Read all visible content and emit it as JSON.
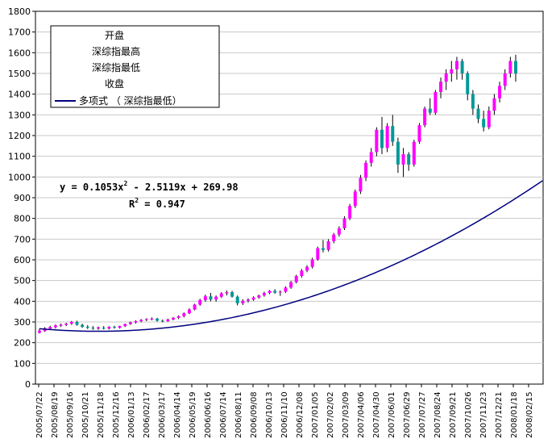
{
  "chart_data": {
    "type": "candlestick",
    "ylim": [
      0,
      1800
    ],
    "ytick_step": 100,
    "yticks": [
      "0",
      "100",
      "200",
      "300",
      "400",
      "500",
      "600",
      "700",
      "800",
      "900",
      "1000",
      "1100",
      "1200",
      "1300",
      "1400",
      "1500",
      "1600",
      "1700",
      "1800"
    ],
    "xticks": [
      "2005/07/22",
      "2005/08/19",
      "2005/09/16",
      "2005/10/21",
      "2005/11/18",
      "2005/12/16",
      "2006/01/13",
      "2006/02/17",
      "2006/03/17",
      "2006/04/14",
      "2006/05/19",
      "2006/06/16",
      "2006/07/14",
      "2006/08/11",
      "2006/09/08",
      "2006/10/13",
      "2006/11/10",
      "2006/12/08",
      "2007/01/05",
      "2007/02/02",
      "2007/03/09",
      "2007/04/06",
      "2007/04/30",
      "2007/06/01",
      "2007/06/29",
      "2007/07/27",
      "2007/08/24",
      "2007/09/21",
      "2007/10/26",
      "2007/11/23",
      "2007/12/21",
      "2008/01/18",
      "2008/02/15"
    ],
    "grid": true,
    "legend_position": "top-left",
    "legend": {
      "entries": [
        "开盘",
        "深综指最高",
        "深综指最低",
        "收盘"
      ],
      "trend_label": "多项式 （   深综指最低）"
    },
    "trendline": {
      "type": "polynomial",
      "coefficients": [
        0.1053,
        -2.5119,
        269.98
      ],
      "equation_prefix": "y = 0.1053x",
      "equation_mid": " - 2.5119x + 269.98",
      "r2_prefix": "R",
      "r2_suffix": " = 0.947",
      "sup": "2"
    },
    "colors": {
      "up": "#ff00ff",
      "down": "#009999",
      "wick": "#000000",
      "trend": "#000080",
      "grid": "#c8c8c8"
    },
    "series": [
      {
        "o": 248,
        "h": 268,
        "l": 244,
        "c": 258
      },
      {
        "o": 256,
        "h": 275,
        "l": 252,
        "c": 270
      },
      {
        "o": 268,
        "h": 282,
        "l": 262,
        "c": 276
      },
      {
        "o": 275,
        "h": 288,
        "l": 268,
        "c": 283
      },
      {
        "o": 282,
        "h": 292,
        "l": 276,
        "c": 287
      },
      {
        "o": 286,
        "h": 296,
        "l": 280,
        "c": 292
      },
      {
        "o": 292,
        "h": 305,
        "l": 286,
        "c": 300
      },
      {
        "o": 300,
        "h": 306,
        "l": 282,
        "c": 286
      },
      {
        "o": 286,
        "h": 292,
        "l": 272,
        "c": 276
      },
      {
        "o": 277,
        "h": 285,
        "l": 266,
        "c": 272
      },
      {
        "o": 272,
        "h": 280,
        "l": 262,
        "c": 268
      },
      {
        "o": 268,
        "h": 278,
        "l": 262,
        "c": 274
      },
      {
        "o": 272,
        "h": 280,
        "l": 264,
        "c": 268
      },
      {
        "o": 268,
        "h": 280,
        "l": 264,
        "c": 276
      },
      {
        "o": 276,
        "h": 282,
        "l": 268,
        "c": 272
      },
      {
        "o": 272,
        "h": 282,
        "l": 268,
        "c": 280
      },
      {
        "o": 280,
        "h": 292,
        "l": 276,
        "c": 290
      },
      {
        "o": 290,
        "h": 302,
        "l": 286,
        "c": 298
      },
      {
        "o": 298,
        "h": 308,
        "l": 292,
        "c": 304
      },
      {
        "o": 304,
        "h": 314,
        "l": 298,
        "c": 310
      },
      {
        "o": 310,
        "h": 318,
        "l": 304,
        "c": 314
      },
      {
        "o": 314,
        "h": 322,
        "l": 308,
        "c": 316
      },
      {
        "o": 316,
        "h": 320,
        "l": 302,
        "c": 306
      },
      {
        "o": 306,
        "h": 312,
        "l": 298,
        "c": 304
      },
      {
        "o": 304,
        "h": 316,
        "l": 300,
        "c": 312
      },
      {
        "o": 312,
        "h": 324,
        "l": 308,
        "c": 320
      },
      {
        "o": 320,
        "h": 332,
        "l": 314,
        "c": 328
      },
      {
        "o": 328,
        "h": 346,
        "l": 322,
        "c": 342
      },
      {
        "o": 342,
        "h": 366,
        "l": 338,
        "c": 360
      },
      {
        "o": 360,
        "h": 388,
        "l": 356,
        "c": 384
      },
      {
        "o": 384,
        "h": 412,
        "l": 378,
        "c": 406
      },
      {
        "o": 406,
        "h": 432,
        "l": 398,
        "c": 424
      },
      {
        "o": 424,
        "h": 440,
        "l": 400,
        "c": 408
      },
      {
        "o": 408,
        "h": 428,
        "l": 398,
        "c": 422
      },
      {
        "o": 422,
        "h": 444,
        "l": 416,
        "c": 438
      },
      {
        "o": 438,
        "h": 452,
        "l": 428,
        "c": 444
      },
      {
        "o": 444,
        "h": 450,
        "l": 418,
        "c": 422
      },
      {
        "o": 422,
        "h": 428,
        "l": 380,
        "c": 390
      },
      {
        "o": 390,
        "h": 410,
        "l": 382,
        "c": 402
      },
      {
        "o": 402,
        "h": 414,
        "l": 394,
        "c": 408
      },
      {
        "o": 408,
        "h": 424,
        "l": 402,
        "c": 418
      },
      {
        "o": 418,
        "h": 432,
        "l": 412,
        "c": 428
      },
      {
        "o": 428,
        "h": 446,
        "l": 422,
        "c": 440
      },
      {
        "o": 440,
        "h": 454,
        "l": 434,
        "c": 450
      },
      {
        "o": 450,
        "h": 458,
        "l": 436,
        "c": 442
      },
      {
        "o": 442,
        "h": 452,
        "l": 426,
        "c": 446
      },
      {
        "o": 446,
        "h": 472,
        "l": 440,
        "c": 466
      },
      {
        "o": 466,
        "h": 498,
        "l": 460,
        "c": 492
      },
      {
        "o": 492,
        "h": 528,
        "l": 486,
        "c": 522
      },
      {
        "o": 522,
        "h": 556,
        "l": 514,
        "c": 548
      },
      {
        "o": 548,
        "h": 574,
        "l": 540,
        "c": 566
      },
      {
        "o": 566,
        "h": 610,
        "l": 558,
        "c": 602
      },
      {
        "o": 602,
        "h": 664,
        "l": 596,
        "c": 656
      },
      {
        "o": 656,
        "h": 696,
        "l": 636,
        "c": 648
      },
      {
        "o": 648,
        "h": 700,
        "l": 640,
        "c": 690
      },
      {
        "o": 690,
        "h": 730,
        "l": 680,
        "c": 722
      },
      {
        "o": 722,
        "h": 762,
        "l": 712,
        "c": 752
      },
      {
        "o": 752,
        "h": 810,
        "l": 744,
        "c": 800
      },
      {
        "o": 800,
        "h": 870,
        "l": 792,
        "c": 860
      },
      {
        "o": 860,
        "h": 940,
        "l": 850,
        "c": 930
      },
      {
        "o": 930,
        "h": 1010,
        "l": 918,
        "c": 996
      },
      {
        "o": 996,
        "h": 1080,
        "l": 980,
        "c": 1068
      },
      {
        "o": 1068,
        "h": 1140,
        "l": 1050,
        "c": 1120
      },
      {
        "o": 1120,
        "h": 1240,
        "l": 1100,
        "c": 1228
      },
      {
        "o": 1228,
        "h": 1290,
        "l": 1110,
        "c": 1140
      },
      {
        "o": 1140,
        "h": 1260,
        "l": 1120,
        "c": 1246
      },
      {
        "o": 1246,
        "h": 1300,
        "l": 1150,
        "c": 1170
      },
      {
        "o": 1170,
        "h": 1190,
        "l": 1020,
        "c": 1060
      },
      {
        "o": 1060,
        "h": 1140,
        "l": 1000,
        "c": 1110
      },
      {
        "o": 1110,
        "h": 1120,
        "l": 1030,
        "c": 1060
      },
      {
        "o": 1060,
        "h": 1180,
        "l": 1050,
        "c": 1170
      },
      {
        "o": 1170,
        "h": 1260,
        "l": 1160,
        "c": 1250
      },
      {
        "o": 1250,
        "h": 1340,
        "l": 1240,
        "c": 1330
      },
      {
        "o": 1330,
        "h": 1380,
        "l": 1300,
        "c": 1310
      },
      {
        "o": 1310,
        "h": 1420,
        "l": 1300,
        "c": 1410
      },
      {
        "o": 1410,
        "h": 1480,
        "l": 1380,
        "c": 1460
      },
      {
        "o": 1460,
        "h": 1520,
        "l": 1420,
        "c": 1500
      },
      {
        "o": 1500,
        "h": 1560,
        "l": 1460,
        "c": 1520
      },
      {
        "o": 1520,
        "h": 1580,
        "l": 1470,
        "c": 1560
      },
      {
        "o": 1560,
        "h": 1570,
        "l": 1470,
        "c": 1500
      },
      {
        "o": 1500,
        "h": 1510,
        "l": 1370,
        "c": 1400
      },
      {
        "o": 1400,
        "h": 1420,
        "l": 1300,
        "c": 1330
      },
      {
        "o": 1330,
        "h": 1350,
        "l": 1260,
        "c": 1280
      },
      {
        "o": 1280,
        "h": 1320,
        "l": 1220,
        "c": 1240
      },
      {
        "o": 1240,
        "h": 1340,
        "l": 1230,
        "c": 1320
      },
      {
        "o": 1320,
        "h": 1400,
        "l": 1300,
        "c": 1380
      },
      {
        "o": 1380,
        "h": 1460,
        "l": 1360,
        "c": 1440
      },
      {
        "o": 1440,
        "h": 1520,
        "l": 1420,
        "c": 1500
      },
      {
        "o": 1500,
        "h": 1580,
        "l": 1480,
        "c": 1560
      },
      {
        "o": 1560,
        "h": 1590,
        "l": 1460,
        "c": 1500
      }
    ]
  }
}
